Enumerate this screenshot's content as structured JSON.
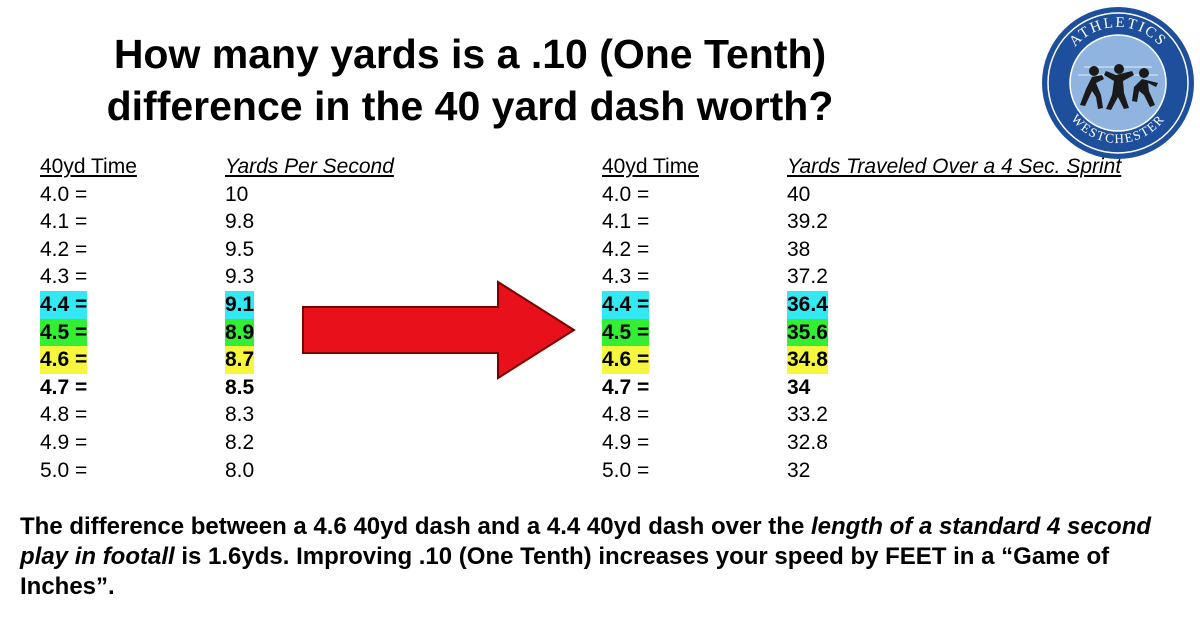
{
  "title": {
    "line1": "How many yards is a .10 (One Tenth)",
    "line2": "difference in the 40 yard dash worth?"
  },
  "logo": {
    "top_text": "ATHLETICS",
    "bottom_text": "WESTCHESTER",
    "icon": "runners-logo-icon",
    "colors": {
      "ring": "#1d4f9c",
      "inner": "#8fb4e0",
      "figures": "#1a1a1a"
    }
  },
  "left_table": {
    "header_time": "40yd Time",
    "header_value": "Yards Per Second",
    "rows": [
      {
        "time": "4.0 =",
        "value": "10",
        "style": ""
      },
      {
        "time": "4.1 =",
        "value": "9.8",
        "style": ""
      },
      {
        "time": "4.2 =",
        "value": "9.5",
        "style": ""
      },
      {
        "time": "4.3 =",
        "value": "9.3",
        "style": ""
      },
      {
        "time": "4.4 =",
        "value": "9.1",
        "style": "bold hl-cyan"
      },
      {
        "time": "4.5 =",
        "value": "8.9",
        "style": "bold hl-green"
      },
      {
        "time": "4.6 =",
        "value": "8.7",
        "style": "bold hl-yellow"
      },
      {
        "time": "4.7 =",
        "value": "8.5",
        "style": "bold"
      },
      {
        "time": "4.8 =",
        "value": "8.3",
        "style": ""
      },
      {
        "time": "4.9 =",
        "value": "8.2",
        "style": ""
      },
      {
        "time": "5.0 =",
        "value": "8.0",
        "style": ""
      }
    ]
  },
  "right_table": {
    "header_time": "40yd Time",
    "header_value": "Yards Traveled Over a 4 Sec. Sprint",
    "rows": [
      {
        "time": "4.0 =",
        "value": "40",
        "style": ""
      },
      {
        "time": "4.1 =",
        "value": "39.2",
        "style": ""
      },
      {
        "time": "4.2 =",
        "value": "38",
        "style": ""
      },
      {
        "time": "4.3 =",
        "value": "37.2",
        "style": ""
      },
      {
        "time": "4.4 =",
        "value": "36.4",
        "style": "bold hl-cyan"
      },
      {
        "time": "4.5 =",
        "value": "35.6",
        "style": "bold hl-green"
      },
      {
        "time": "4.6 =",
        "value": "34.8",
        "style": "bold hl-yellow"
      },
      {
        "time": "4.7 =",
        "value": "34",
        "style": "bold"
      },
      {
        "time": "4.8 =",
        "value": "33.2",
        "style": ""
      },
      {
        "time": "4.9 =",
        "value": "32.8",
        "style": ""
      },
      {
        "time": "5.0 =",
        "value": "32",
        "style": ""
      }
    ]
  },
  "arrow": {
    "icon": "right-arrow-icon",
    "color": "#e8101a",
    "outline": "#7a0000"
  },
  "footer": {
    "part1": "The difference between a 4.6 40yd dash and a 4.4 40yd dash over the ",
    "part2_italic": "length of a standard 4 second play in footall",
    "part3": " is 1.6yds.  Improving .10 (One Tenth) increases your speed by FEET in a “Game of Inches”."
  },
  "highlight_colors": {
    "cyan": "#33e8f2",
    "green": "#33ee33",
    "yellow": "#f6f63e"
  }
}
